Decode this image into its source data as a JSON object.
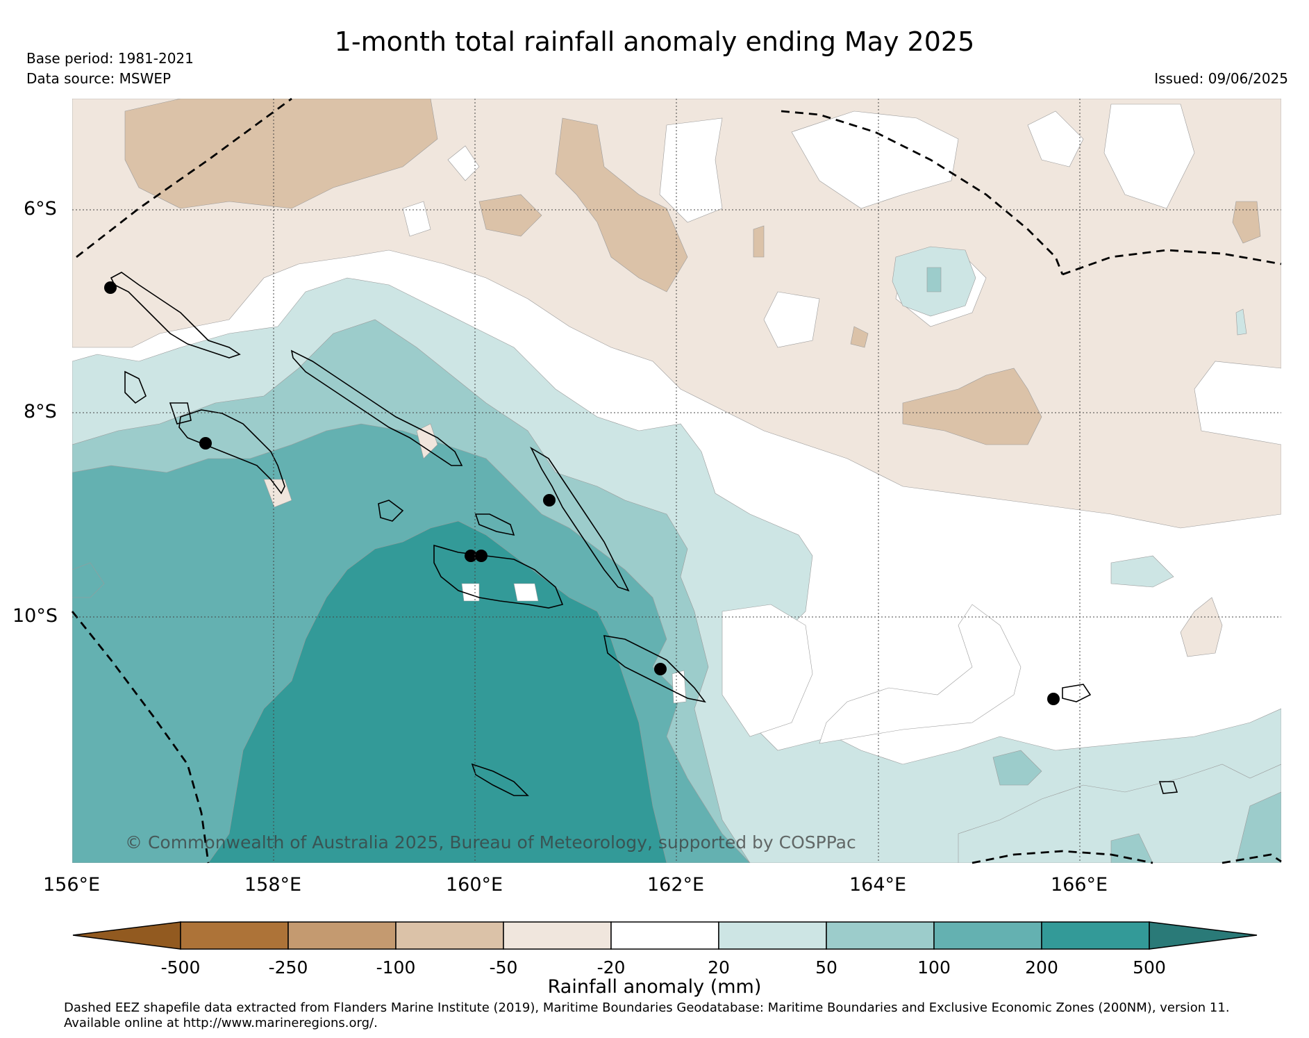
{
  "header": {
    "title": "1-month total rainfall anomaly ending May 2025",
    "base_period": "Base period: 1981-2021",
    "data_source": "Data source: MSWEP",
    "issued": "Issued: 09/06/2025"
  },
  "map": {
    "lat_labels": [
      "6°S",
      "8°S",
      "10°S"
    ],
    "lon_labels": [
      "156°E",
      "158°E",
      "160°E",
      "162°E",
      "164°E",
      "166°E"
    ],
    "copyright": "© Commonwealth of Australia 2025, Bureau of Meteorology, supported by COSPPac"
  },
  "colorbar": {
    "title": "Rainfall anomaly (mm)",
    "ticks": [
      "-500",
      "-250",
      "-100",
      "-50",
      "-20",
      "20",
      "50",
      "100",
      "200",
      "500"
    ],
    "colors": [
      "#925a20",
      "#ad7338",
      "#c49a70",
      "#dbc2a8",
      "#f0e6dd",
      "#ffffff",
      "#cde5e4",
      "#9ccccb",
      "#64b1b1",
      "#339a98",
      "#2a7a78"
    ]
  },
  "footnote": {
    "line1": "Dashed EEZ shapefile data extracted from Flanders Marine Institute (2019), Maritime Boundaries Geodatabase: Maritime Boundaries and Exclusive Economic Zones (200NM), version 11.",
    "line2": "Available online at http://www.marineregions.org/."
  }
}
